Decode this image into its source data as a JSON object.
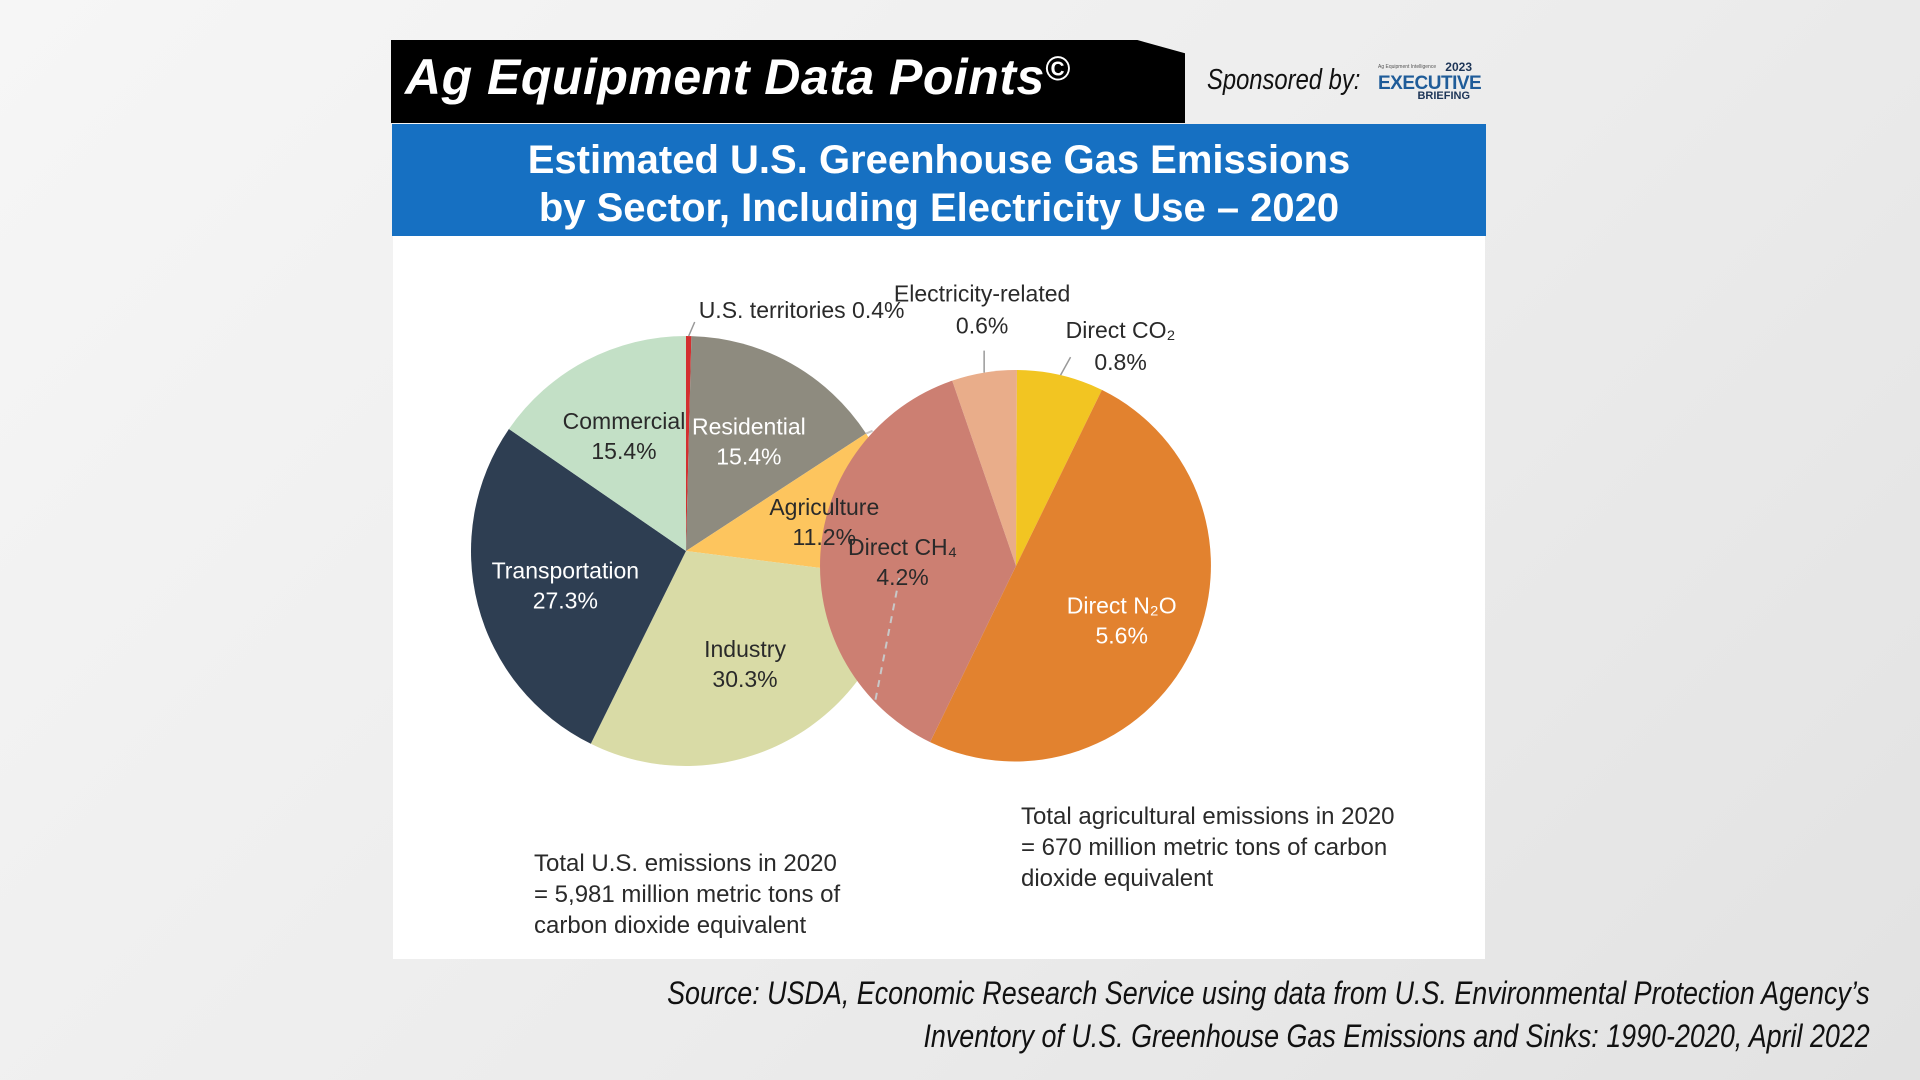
{
  "header": {
    "title": "Ag Equipment Data Points",
    "copyright_mark": "©",
    "sponsor_label": "Sponsored by:",
    "sponsor_logo": {
      "year": "2023",
      "tagline": "Ag Equipment Intelligence",
      "word1": "EXECUTIVE",
      "word2": "BRIEFING"
    }
  },
  "title": {
    "line1": "Estimated U.S. Greenhouse Gas Emissions",
    "line2": "by Sector, Including Electricity Use – 2020"
  },
  "colors": {
    "header_black": "#000000",
    "title_band": "#1670c2",
    "panel_bg": "#ffffff"
  },
  "chart_data": [
    {
      "type": "pie",
      "title": "",
      "slices": [
        {
          "label": "U.S. territories",
          "value": 0.4,
          "display": "U.S. territories 0.4%",
          "color": "#d32f2f",
          "text_color": "#2a2a2a"
        },
        {
          "label": "Residential",
          "value": 15.4,
          "display": "15.4%",
          "color": "#8e8b7f",
          "text_color": "#ffffff"
        },
        {
          "label": "Agriculture",
          "value": 11.2,
          "display": "11.2%",
          "color": "#fdc55e",
          "text_color": "#2a2a2a"
        },
        {
          "label": "Industry",
          "value": 30.3,
          "display": "30.3%",
          "color": "#d9dba6",
          "text_color": "#2a2a2a"
        },
        {
          "label": "Transportation",
          "value": 27.3,
          "display": "27.3%",
          "color": "#2e3e52",
          "text_color": "#ffffff"
        },
        {
          "label": "Commercial",
          "value": 15.4,
          "display": "15.4%",
          "color": "#c3e0c6",
          "text_color": "#2a2a2a"
        }
      ],
      "note": [
        "Total U.S. emissions in 2020",
        "= 5,981 million metric tons of",
        "carbon dioxide equivalent"
      ]
    },
    {
      "type": "pie",
      "title": "",
      "slices": [
        {
          "label": "Electricity-related",
          "value": 0.6,
          "display": "0.6%",
          "color": "#e9ad8a",
          "text_color": "#2a2a2a"
        },
        {
          "label": "Direct CO₂",
          "value": 0.8,
          "display": "0.8%",
          "color": "#f2c522",
          "text_color": "#2a2a2a"
        },
        {
          "label": "Direct N₂O",
          "value": 5.6,
          "display": "5.6%",
          "color": "#e2822f",
          "text_color": "#ffffff"
        },
        {
          "label": "Direct CH₄",
          "value": 4.2,
          "display": "4.2%",
          "color": "#cc7f72",
          "text_color": "#2a2a2a"
        }
      ],
      "note": [
        "Total agricultural emissions in 2020",
        "= 670 million metric tons of carbon",
        "dioxide equivalent"
      ]
    }
  ],
  "source": {
    "line1": "Source: USDA, Economic Research Service using data from U.S. Environmental Protection Agency’s",
    "line2": "Inventory of U.S. Greenhouse Gas Emissions and Sinks: 1990-2020, April 2022"
  }
}
